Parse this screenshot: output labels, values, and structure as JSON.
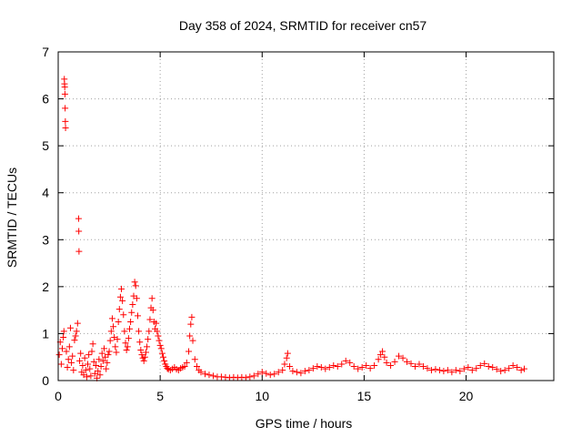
{
  "chart_data": {
    "type": "scatter",
    "title": "Day 358 of 2024, SRMTID for receiver cn57",
    "xlabel": "GPS time / hours",
    "ylabel": "SRMTID / TECUs",
    "xlim": [
      0,
      24.3
    ],
    "ylim": [
      0,
      7
    ],
    "xticks": [
      0,
      5,
      10,
      15,
      20
    ],
    "yticks": [
      0,
      1,
      2,
      3,
      4,
      5,
      6,
      7
    ],
    "grid": true,
    "marker": "+",
    "color": "#ff0000",
    "series": [
      {
        "name": "SRMTID",
        "points": [
          [
            0.05,
            0.55
          ],
          [
            0.1,
            0.82
          ],
          [
            0.15,
            0.35
          ],
          [
            0.2,
            0.68
          ],
          [
            0.25,
            0.92
          ],
          [
            0.28,
            1.05
          ],
          [
            0.3,
            6.42
          ],
          [
            0.31,
            6.32
          ],
          [
            0.32,
            6.25
          ],
          [
            0.33,
            6.1
          ],
          [
            0.34,
            5.8
          ],
          [
            0.35,
            5.52
          ],
          [
            0.36,
            5.38
          ],
          [
            0.4,
            0.62
          ],
          [
            0.45,
            0.28
          ],
          [
            0.5,
            0.45
          ],
          [
            0.55,
            0.72
          ],
          [
            0.6,
            1.12
          ],
          [
            0.65,
            0.38
          ],
          [
            0.7,
            0.52
          ],
          [
            0.75,
            0.22
          ],
          [
            0.8,
            0.86
          ],
          [
            0.85,
            0.95
          ],
          [
            0.9,
            1.05
          ],
          [
            0.95,
            1.22
          ],
          [
            1.0,
            3.45
          ],
          [
            1.01,
            3.18
          ],
          [
            1.02,
            2.75
          ],
          [
            1.05,
            0.42
          ],
          [
            1.1,
            0.58
          ],
          [
            1.15,
            0.18
          ],
          [
            1.2,
            0.32
          ],
          [
            1.25,
            0.12
          ],
          [
            1.3,
            0.48
          ],
          [
            1.35,
            0.22
          ],
          [
            1.4,
            0.08
          ],
          [
            1.45,
            0.35
          ],
          [
            1.5,
            0.55
          ],
          [
            1.55,
            0.25
          ],
          [
            1.6,
            0.1
          ],
          [
            1.65,
            0.62
          ],
          [
            1.7,
            0.78
          ],
          [
            1.75,
            0.4
          ],
          [
            1.8,
            0.15
          ],
          [
            1.85,
            0.32
          ],
          [
            1.9,
            0.05
          ],
          [
            1.95,
            0.2
          ],
          [
            2.0,
            0.45
          ],
          [
            2.05,
            0.12
          ],
          [
            2.1,
            0.3
          ],
          [
            2.15,
            0.58
          ],
          [
            2.2,
            0.42
          ],
          [
            2.25,
            0.68
          ],
          [
            2.3,
            0.5
          ],
          [
            2.35,
            0.25
          ],
          [
            2.4,
            0.38
          ],
          [
            2.45,
            0.55
          ],
          [
            2.5,
            0.62
          ],
          [
            2.55,
            0.85
          ],
          [
            2.6,
            1.05
          ],
          [
            2.65,
            1.32
          ],
          [
            2.7,
            1.15
          ],
          [
            2.75,
            0.92
          ],
          [
            2.8,
            0.72
          ],
          [
            2.85,
            0.6
          ],
          [
            2.9,
            0.88
          ],
          [
            2.95,
            1.25
          ],
          [
            3.0,
            1.52
          ],
          [
            3.05,
            1.78
          ],
          [
            3.1,
            1.95
          ],
          [
            3.15,
            1.7
          ],
          [
            3.2,
            1.4
          ],
          [
            3.25,
            1.05
          ],
          [
            3.3,
            0.8
          ],
          [
            3.35,
            0.65
          ],
          [
            3.4,
            0.72
          ],
          [
            3.45,
            0.9
          ],
          [
            3.5,
            1.1
          ],
          [
            3.55,
            1.25
          ],
          [
            3.6,
            1.45
          ],
          [
            3.65,
            1.62
          ],
          [
            3.7,
            1.8
          ],
          [
            3.75,
            2.1
          ],
          [
            3.8,
            2.02
          ],
          [
            3.85,
            1.75
          ],
          [
            3.9,
            1.38
          ],
          [
            3.95,
            1.05
          ],
          [
            4.0,
            0.82
          ],
          [
            4.05,
            0.65
          ],
          [
            4.1,
            0.55
          ],
          [
            4.15,
            0.48
          ],
          [
            4.2,
            0.42
          ],
          [
            4.25,
            0.5
          ],
          [
            4.3,
            0.6
          ],
          [
            4.35,
            0.72
          ],
          [
            4.4,
            0.88
          ],
          [
            4.45,
            1.05
          ],
          [
            4.5,
            1.3
          ],
          [
            4.55,
            1.55
          ],
          [
            4.6,
            1.75
          ],
          [
            4.65,
            1.5
          ],
          [
            4.7,
            1.25
          ],
          [
            4.75,
            1.1
          ],
          [
            4.8,
            1.22
          ],
          [
            4.85,
            1.05
          ],
          [
            4.9,
            0.95
          ],
          [
            4.95,
            0.85
          ],
          [
            5.0,
            0.75
          ],
          [
            5.05,
            0.68
          ],
          [
            5.1,
            0.58
          ],
          [
            5.15,
            0.5
          ],
          [
            5.2,
            0.42
          ],
          [
            5.25,
            0.35
          ],
          [
            5.3,
            0.3
          ],
          [
            5.35,
            0.26
          ],
          [
            5.4,
            0.24
          ],
          [
            5.5,
            0.22
          ],
          [
            5.6,
            0.25
          ],
          [
            5.7,
            0.28
          ],
          [
            5.8,
            0.24
          ],
          [
            5.9,
            0.22
          ],
          [
            6.0,
            0.26
          ],
          [
            6.1,
            0.28
          ],
          [
            6.2,
            0.3
          ],
          [
            6.3,
            0.38
          ],
          [
            6.4,
            0.62
          ],
          [
            6.45,
            0.95
          ],
          [
            6.5,
            1.2
          ],
          [
            6.55,
            1.35
          ],
          [
            6.6,
            0.85
          ],
          [
            6.7,
            0.45
          ],
          [
            6.8,
            0.3
          ],
          [
            6.9,
            0.22
          ],
          [
            7.0,
            0.18
          ],
          [
            7.2,
            0.14
          ],
          [
            7.4,
            0.12
          ],
          [
            7.6,
            0.1
          ],
          [
            7.8,
            0.08
          ],
          [
            8.0,
            0.08
          ],
          [
            8.2,
            0.07
          ],
          [
            8.4,
            0.06
          ],
          [
            8.6,
            0.07
          ],
          [
            8.8,
            0.06
          ],
          [
            9.0,
            0.07
          ],
          [
            9.2,
            0.06
          ],
          [
            9.4,
            0.08
          ],
          [
            9.6,
            0.1
          ],
          [
            9.8,
            0.14
          ],
          [
            10.0,
            0.18
          ],
          [
            10.2,
            0.15
          ],
          [
            10.4,
            0.12
          ],
          [
            10.6,
            0.14
          ],
          [
            10.8,
            0.18
          ],
          [
            11.0,
            0.22
          ],
          [
            11.1,
            0.35
          ],
          [
            11.2,
            0.48
          ],
          [
            11.25,
            0.58
          ],
          [
            11.35,
            0.3
          ],
          [
            11.5,
            0.2
          ],
          [
            11.7,
            0.18
          ],
          [
            11.9,
            0.16
          ],
          [
            12.1,
            0.2
          ],
          [
            12.3,
            0.22
          ],
          [
            12.5,
            0.26
          ],
          [
            12.7,
            0.3
          ],
          [
            12.9,
            0.28
          ],
          [
            13.1,
            0.25
          ],
          [
            13.3,
            0.28
          ],
          [
            13.5,
            0.32
          ],
          [
            13.7,
            0.3
          ],
          [
            13.9,
            0.35
          ],
          [
            14.1,
            0.42
          ],
          [
            14.3,
            0.38
          ],
          [
            14.5,
            0.3
          ],
          [
            14.7,
            0.25
          ],
          [
            14.9,
            0.28
          ],
          [
            15.1,
            0.32
          ],
          [
            15.3,
            0.26
          ],
          [
            15.5,
            0.32
          ],
          [
            15.7,
            0.45
          ],
          [
            15.8,
            0.55
          ],
          [
            15.9,
            0.62
          ],
          [
            16.0,
            0.5
          ],
          [
            16.1,
            0.38
          ],
          [
            16.3,
            0.32
          ],
          [
            16.5,
            0.4
          ],
          [
            16.7,
            0.52
          ],
          [
            16.9,
            0.48
          ],
          [
            17.1,
            0.4
          ],
          [
            17.3,
            0.36
          ],
          [
            17.5,
            0.3
          ],
          [
            17.7,
            0.35
          ],
          [
            17.9,
            0.3
          ],
          [
            18.1,
            0.26
          ],
          [
            18.3,
            0.22
          ],
          [
            18.5,
            0.24
          ],
          [
            18.7,
            0.22
          ],
          [
            18.9,
            0.2
          ],
          [
            19.1,
            0.22
          ],
          [
            19.3,
            0.18
          ],
          [
            19.5,
            0.22
          ],
          [
            19.7,
            0.2
          ],
          [
            19.9,
            0.25
          ],
          [
            20.1,
            0.28
          ],
          [
            20.3,
            0.22
          ],
          [
            20.5,
            0.26
          ],
          [
            20.7,
            0.32
          ],
          [
            20.9,
            0.36
          ],
          [
            21.1,
            0.3
          ],
          [
            21.3,
            0.28
          ],
          [
            21.5,
            0.24
          ],
          [
            21.7,
            0.2
          ],
          [
            21.9,
            0.22
          ],
          [
            22.1,
            0.26
          ],
          [
            22.3,
            0.32
          ],
          [
            22.5,
            0.28
          ],
          [
            22.7,
            0.22
          ],
          [
            22.85,
            0.25
          ]
        ]
      }
    ]
  }
}
